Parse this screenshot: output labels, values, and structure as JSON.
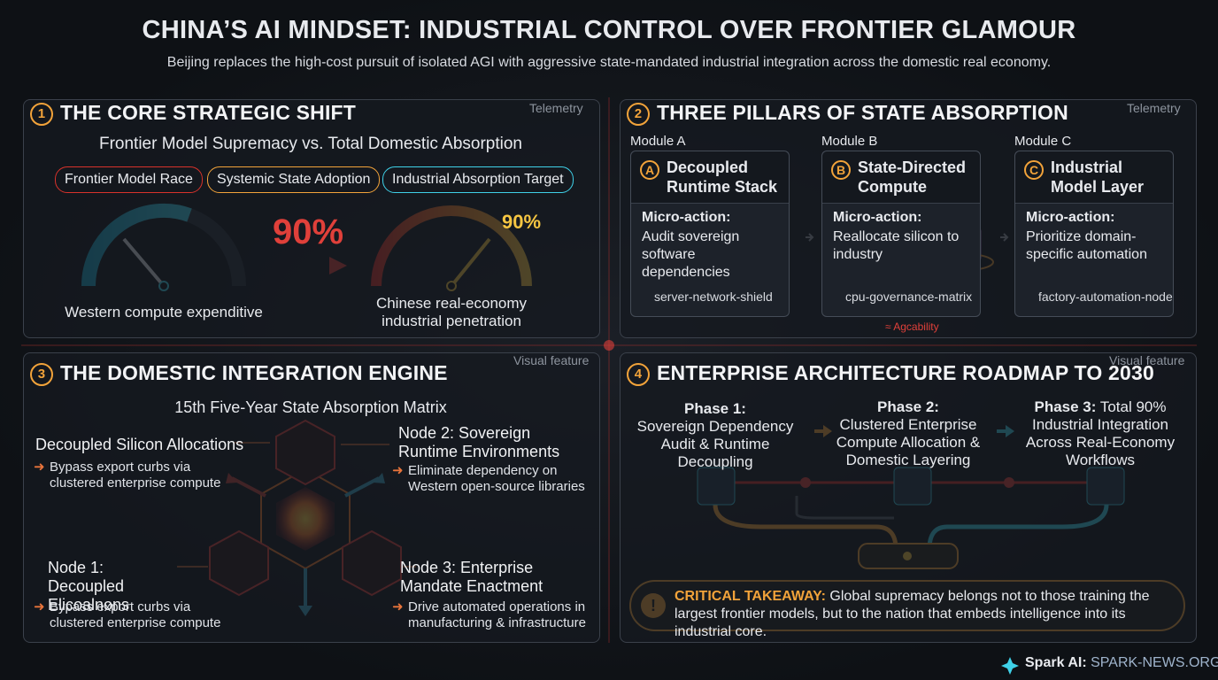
{
  "header": {
    "title": "CHINA’S AI MINDSET: INDUSTRIAL CONTROL OVER FRONTIER GLAMOUR",
    "subtitle": "Beijing replaces the high-cost pursuit of isolated AGI with aggressive state-mandated industrial integration across the domestic real economy."
  },
  "panel1": {
    "number": "1",
    "title": "THE CORE STRATEGIC SHIFT",
    "tag": "Telemetry",
    "subtitle": "Frontier Model Supremacy vs. Total Domestic Absorption",
    "pills": [
      "Frontier Model Race",
      "Systemic State Adoption",
      "Industrial Absorption Target"
    ],
    "shift_value": "90%",
    "gauge_value": "90%",
    "left_caption": "Western compute expenditive",
    "right_caption": "Chinese real-economy industrial penetration"
  },
  "panel2": {
    "number": "2",
    "title": "THREE PILLARS OF STATE ABSORPTION",
    "tag": "Telemetry",
    "modules": [
      {
        "module": "Module A",
        "letter": "A",
        "title": "Decoupled Runtime Stack",
        "micro": "Micro-action:",
        "action": "Audit sovereign software dependencies",
        "icon": "server-network-shield"
      },
      {
        "module": "Module B",
        "letter": "B",
        "title": "State-Directed Compute",
        "micro": "Micro-action:",
        "action": "Reallocate silicon to industry",
        "icon": "cpu-governance-matrix"
      },
      {
        "module": "Module C",
        "letter": "C",
        "title": "Industrial Model Layer",
        "micro": "Micro-action:",
        "action": "Prioritize domain-specific automation",
        "icon": "factory-automation-node"
      }
    ],
    "footnote": "≈ Agcability"
  },
  "panel3": {
    "number": "3",
    "title": "THE DOMESTIC INTEGRATION ENGINE",
    "tag": "Visual feature",
    "subtitle": "15th Five-Year State Absorption Matrix",
    "nodes": [
      {
        "title": "Decoupled Silicon Allocations",
        "desc": "Bypass export curbs via clustered enterprise compute"
      },
      {
        "title": "Node 2: Sovereign Runtime Environments",
        "desc": "Eliminate dependency on Western open-source libraries"
      },
      {
        "title": "Node 1: Decoupled Elicoalnons",
        "desc": "Bypass  export curbs via clustered enterprise compute"
      },
      {
        "title": "Node 3: Enterprise Mandate Enactment",
        "desc": "Drive automated operations in manufacturing & infrastructure"
      }
    ]
  },
  "panel4": {
    "number": "4",
    "title": "ENTERPRISE ARCHITECTURE ROADMAP TO 2030",
    "tag": "Visual feature",
    "phases": [
      {
        "label": "Phase 1:",
        "text": "Sovereign Dependency Audit & Runtime Decoupling"
      },
      {
        "label": "Phase 2:",
        "text": "Clustered Enterprise Compute Allocation & Domestic Layering"
      },
      {
        "label": "Phase 3:",
        "text": "Total 90% Industrial Integration Across Real-Economy Workflows"
      }
    ],
    "takeaway_label": "CRITICAL TAKEAWAY:",
    "takeaway_text": "Global supremacy belongs not to those training the largest frontier models, but to the nation that embeds intelligence into its industrial core."
  },
  "footer": {
    "brand": "Spark AI:",
    "site": "SPARK-NEWS.ORG"
  }
}
